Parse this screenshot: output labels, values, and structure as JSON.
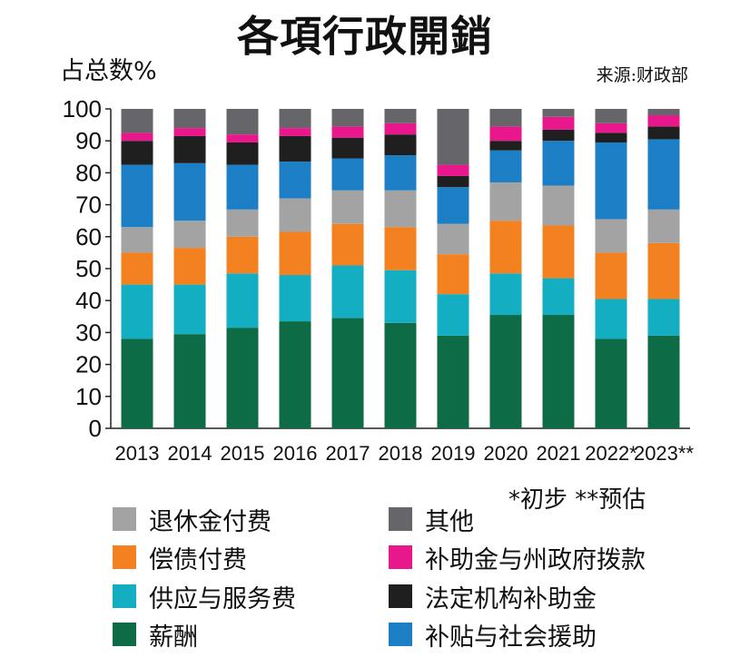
{
  "title": "各項行政開銷",
  "source": "来源:财政部",
  "note": "*初步   **预估",
  "chart_data": {
    "type": "bar",
    "stacked": true,
    "ylabel": "占总数%",
    "ylim": [
      0,
      100
    ],
    "yticks": [
      "0",
      "10",
      "20",
      "30",
      "40",
      "50",
      "60",
      "70",
      "80",
      "90",
      "100"
    ],
    "categories": [
      "2013",
      "2014",
      "2015",
      "2016",
      "2017",
      "2018",
      "2019",
      "2020",
      "2021",
      "2022*",
      "2023**"
    ],
    "series": [
      {
        "name": "薪酬",
        "color": "#0d6b45",
        "values": [
          28,
          29.5,
          31.5,
          33.5,
          34.5,
          33,
          29,
          35.5,
          35.5,
          28,
          29
        ]
      },
      {
        "name": "供应与服务费",
        "color": "#14aec2",
        "values": [
          17,
          15.5,
          17,
          14.5,
          16.5,
          16.5,
          13,
          13,
          11.5,
          12.5,
          11.5
        ]
      },
      {
        "name": "偿债付费",
        "color": "#f4811f",
        "values": [
          10,
          11.5,
          11.5,
          13.5,
          13,
          13.5,
          12.5,
          16.5,
          16.5,
          14.5,
          17.5
        ]
      },
      {
        "name": "退休金付费",
        "color": "#a3a3a3",
        "values": [
          8,
          8.5,
          8.5,
          10.5,
          10.5,
          11.5,
          9.5,
          12,
          12.5,
          10.5,
          10.5
        ]
      },
      {
        "name": "补贴与社会援助",
        "color": "#1c7fc5",
        "values": [
          19.5,
          18,
          14,
          11.5,
          10,
          11,
          11.5,
          10,
          14,
          24,
          22
        ]
      },
      {
        "name": "法定机构补助金",
        "color": "#1f1f1f",
        "values": [
          7.5,
          8.5,
          7,
          8,
          6.5,
          6.5,
          3.5,
          3,
          3.5,
          3,
          4
        ]
      },
      {
        "name": "补助金与州政府拨款",
        "color": "#e8178c",
        "values": [
          2.5,
          2.5,
          2.5,
          2.5,
          3.5,
          3.5,
          3.5,
          4.5,
          4,
          3,
          3.5
        ]
      },
      {
        "name": "其他",
        "color": "#65656a",
        "values": [
          7.5,
          6,
          8,
          6,
          5.5,
          4.5,
          17.5,
          5.5,
          2.5,
          4.5,
          2
        ]
      }
    ]
  },
  "legend_order": [
    "退休金付费",
    "其他",
    "偿债付费",
    "补助金与州政府拨款",
    "供应与服务费",
    "法定机构补助金",
    "薪酬",
    "补贴与社会援助"
  ]
}
